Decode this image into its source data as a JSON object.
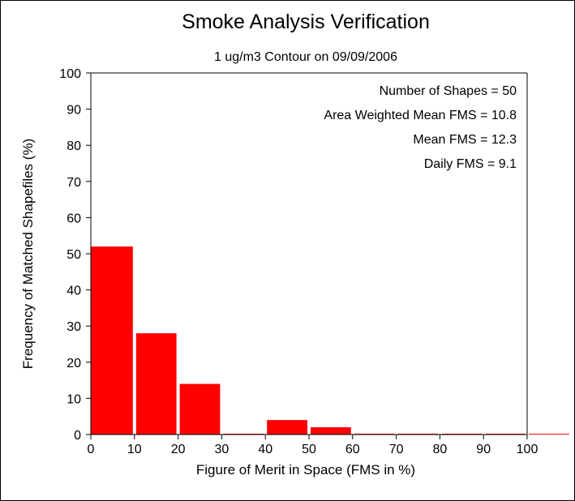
{
  "chart_data": {
    "type": "bar",
    "title": "Smoke Analysis Verification",
    "subtitle": "1 ug/m3 Contour on 09/09/2006",
    "xlabel": "Figure of Merit in Space (FMS in %)",
    "ylabel": "Frequency of Matched Shapefiles (%)",
    "xlim": [
      0,
      110
    ],
    "ylim": [
      0,
      100
    ],
    "x_ticks": [
      "0",
      "10",
      "20",
      "30",
      "40",
      "50",
      "60",
      "70",
      "80",
      "90",
      "100"
    ],
    "y_ticks": [
      "0",
      "10",
      "20",
      "30",
      "40",
      "50",
      "60",
      "70",
      "80",
      "90",
      "100"
    ],
    "bins": [
      {
        "x0": 0,
        "x1": 10,
        "value": 52
      },
      {
        "x0": 10,
        "x1": 20,
        "value": 28
      },
      {
        "x0": 20,
        "x1": 30,
        "value": 14
      },
      {
        "x0": 30,
        "x1": 40,
        "value": 0
      },
      {
        "x0": 40,
        "x1": 50,
        "value": 4
      },
      {
        "x0": 50,
        "x1": 60,
        "value": 2
      },
      {
        "x0": 60,
        "x1": 70,
        "value": 0
      },
      {
        "x0": 70,
        "x1": 80,
        "value": 0
      },
      {
        "x0": 80,
        "x1": 90,
        "value": 0
      },
      {
        "x0": 90,
        "x1": 100,
        "value": 0
      },
      {
        "x0": 100,
        "x1": 110,
        "value": 0
      }
    ],
    "bar_color": "#ff0000",
    "grid": false,
    "annotations": [
      "Number of Shapes = 50",
      "Area Weighted Mean FMS = 10.8",
      "Mean FMS = 12.3",
      "Daily FMS = 9.1"
    ]
  }
}
